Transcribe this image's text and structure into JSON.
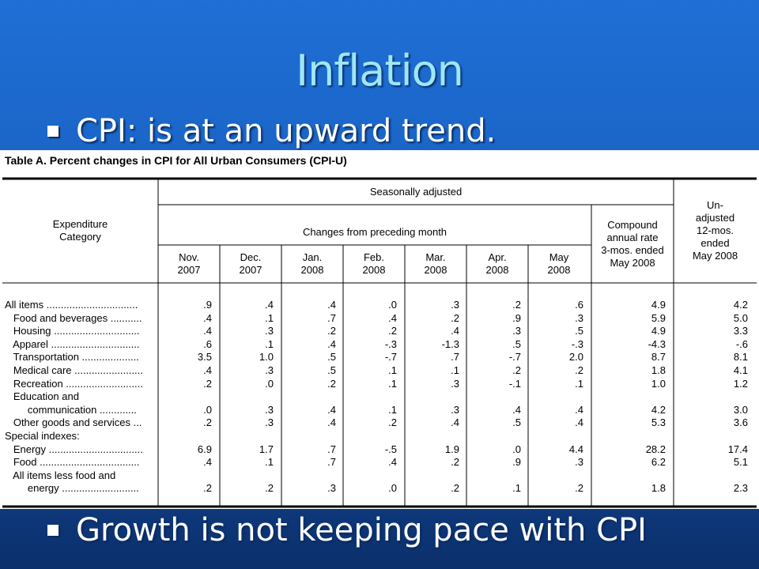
{
  "slide": {
    "title": "Inflation",
    "bullets": [
      "CPI: is at an upward trend.",
      "Growth is not keeping pace with CPI"
    ]
  },
  "table": {
    "caption": "Table A. Percent changes in CPI for All Urban Consumers (CPI-U)",
    "header": {
      "category_label": [
        "Expenditure",
        "Category"
      ],
      "seasonally_adjusted": "Seasonally adjusted",
      "changes_label": "Changes from preceding month",
      "compound_label": [
        "Compound",
        "annual rate",
        "3-mos. ended",
        "May 2008"
      ],
      "unadjusted_label": [
        "Un-",
        "adjusted",
        "12-mos.",
        "ended",
        "May 2008"
      ],
      "months": [
        [
          "Nov.",
          "2007"
        ],
        [
          "Dec.",
          "2007"
        ],
        [
          "Jan.",
          "2008"
        ],
        [
          "Feb.",
          "2008"
        ],
        [
          "Mar.",
          "2008"
        ],
        [
          "Apr.",
          "2008"
        ],
        [
          "May",
          "2008"
        ]
      ]
    },
    "rows": [
      {
        "label": "All items ................................",
        "values": [
          ".9",
          ".4",
          ".4",
          ".0",
          ".3",
          ".2",
          ".6",
          "4.9",
          "4.2"
        ]
      },
      {
        "label": "   Food and beverages ...........",
        "values": [
          ".4",
          ".1",
          ".7",
          ".4",
          ".2",
          ".9",
          ".3",
          "5.9",
          "5.0"
        ]
      },
      {
        "label": "   Housing ..............................",
        "values": [
          ".4",
          ".3",
          ".2",
          ".2",
          ".4",
          ".3",
          ".5",
          "4.9",
          "3.3"
        ]
      },
      {
        "label": "   Apparel ...............................",
        "values": [
          ".6",
          ".1",
          ".4",
          "-.3",
          "-1.3",
          ".5",
          "-.3",
          "-4.3",
          "-.6"
        ]
      },
      {
        "label": "   Transportation ....................",
        "values": [
          "3.5",
          "1.0",
          ".5",
          "-.7",
          ".7",
          "-.7",
          "2.0",
          "8.7",
          "8.1"
        ]
      },
      {
        "label": "   Medical care ........................",
        "values": [
          ".4",
          ".3",
          ".5",
          ".1",
          ".1",
          ".2",
          ".2",
          "1.8",
          "4.1"
        ]
      },
      {
        "label": "   Recreation ...........................",
        "values": [
          ".2",
          ".0",
          ".2",
          ".1",
          ".3",
          "-.1",
          ".1",
          "1.0",
          "1.2"
        ]
      },
      {
        "label": "   Education and",
        "values": [
          "",
          "",
          "",
          "",
          "",
          "",
          "",
          "",
          ""
        ]
      },
      {
        "label": "        communication .............",
        "values": [
          ".0",
          ".3",
          ".4",
          ".1",
          ".3",
          ".4",
          ".4",
          "4.2",
          "3.0"
        ]
      },
      {
        "label": "   Other goods and services ...",
        "values": [
          ".2",
          ".3",
          ".4",
          ".2",
          ".4",
          ".5",
          ".4",
          "5.3",
          "3.6"
        ]
      },
      {
        "label": "Special indexes:",
        "values": [
          "",
          "",
          "",
          "",
          "",
          "",
          "",
          "",
          ""
        ]
      },
      {
        "label": "   Energy .................................",
        "values": [
          "6.9",
          "1.7",
          ".7",
          "-.5",
          "1.9",
          ".0",
          "4.4",
          "28.2",
          "17.4"
        ]
      },
      {
        "label": "   Food ...................................",
        "values": [
          ".4",
          ".1",
          ".7",
          ".4",
          ".2",
          ".9",
          ".3",
          "6.2",
          "5.1"
        ]
      },
      {
        "label": "   All items less food and",
        "values": [
          "",
          "",
          "",
          "",
          "",
          "",
          "",
          "",
          ""
        ]
      },
      {
        "label": "        energy ...........................",
        "values": [
          ".2",
          ".2",
          ".3",
          ".0",
          ".2",
          ".1",
          ".2",
          "1.8",
          "2.3"
        ]
      }
    ]
  }
}
